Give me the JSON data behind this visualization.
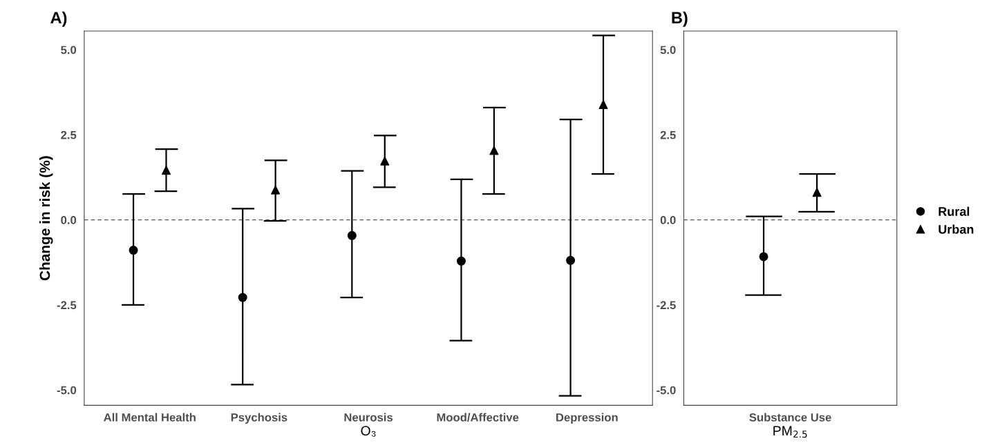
{
  "chart_data": [
    {
      "type": "scatter",
      "title": "A)",
      "xlabel": "O₃",
      "ylabel": "Change in risk (%)",
      "categories": [
        "All Mental Health",
        "Psychosis",
        "Neurosis",
        "Mood/Affective",
        "Depression"
      ],
      "ylim": [
        -5.45,
        5.55
      ],
      "yticks": [
        {
          "value": -5,
          "label": "-5.0"
        },
        {
          "value": -2.5,
          "label": "-2.5"
        },
        {
          "value": 0,
          "label": "0.0"
        },
        {
          "value": 2.5,
          "label": "2.5"
        },
        {
          "value": 5,
          "label": "5.0"
        }
      ],
      "grid": false,
      "legend": "right",
      "ref_lines": [
        {
          "axis": "y",
          "value": 0,
          "color": "#555555",
          "line_style": "dashed"
        }
      ],
      "series": [
        {
          "name": "Rural",
          "color": "#000000",
          "marker": "circle",
          "values": [
            -0.89,
            -2.28,
            -0.46,
            -1.21,
            -1.19
          ],
          "errors": [
            [
              -2.5,
              0.76
            ],
            [
              -4.84,
              0.33
            ],
            [
              -2.28,
              1.44
            ],
            [
              -3.55,
              1.19
            ],
            [
              -5.17,
              2.95
            ]
          ]
        },
        {
          "name": "Urban",
          "color": "#000000",
          "marker": "triangle",
          "values": [
            1.46,
            0.88,
            1.73,
            2.04,
            3.39
          ],
          "errors": [
            [
              0.84,
              2.08
            ],
            [
              -0.03,
              1.75
            ],
            [
              0.96,
              2.48
            ],
            [
              0.76,
              3.3
            ],
            [
              1.35,
              5.42
            ]
          ]
        }
      ]
    },
    {
      "type": "scatter",
      "title": "B)",
      "xlabel": "PM$_{2.5}$",
      "categories": [
        "Substance Use"
      ],
      "ylim": [
        -5.45,
        5.55
      ],
      "yticks": [
        {
          "value": -5,
          "label": "-5.0"
        },
        {
          "value": -2.5,
          "label": "-2.5"
        },
        {
          "value": 0,
          "label": "0.0"
        },
        {
          "value": 2.5,
          "label": "2.5"
        },
        {
          "value": 5,
          "label": "5.0"
        }
      ],
      "grid": false,
      "ref_lines": [
        {
          "axis": "y",
          "value": 0,
          "color": "#555555",
          "line_style": "dashed"
        }
      ],
      "series": [
        {
          "color": "#000000",
          "marker": "circle",
          "values": [
            -1.08
          ],
          "errors": [
            [
              -2.21,
              0.1
            ]
          ]
        },
        {
          "color": "#000000",
          "marker": "triangle",
          "values": [
            0.81
          ],
          "errors": [
            [
              0.24,
              1.35
            ]
          ]
        }
      ]
    }
  ]
}
